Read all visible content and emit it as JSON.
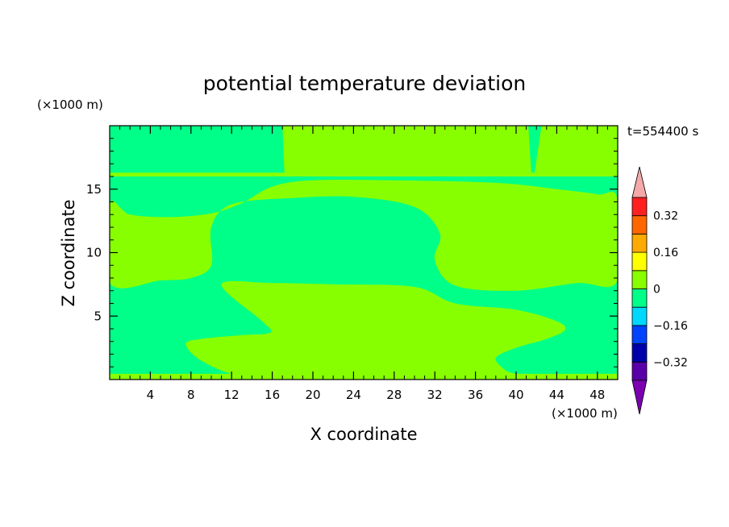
{
  "chart_data": {
    "type": "heatmap",
    "title": "potential temperature deviation",
    "time_label": "t=554400 s",
    "xlabel": "X coordinate",
    "ylabel": "Z coordinate",
    "x_unit": "(×1000 m)",
    "y_unit": "(×1000 m)",
    "xlim": [
      0,
      50
    ],
    "ylim": [
      0,
      20
    ],
    "x_ticks": [
      4,
      8,
      12,
      16,
      20,
      24,
      28,
      32,
      36,
      40,
      44,
      48
    ],
    "y_ticks": [
      5,
      10,
      15
    ],
    "colorbar": {
      "labels": [
        {
          "value": 0.32,
          "text": "0.32"
        },
        {
          "value": 0.16,
          "text": "0.16"
        },
        {
          "value": 0,
          "text": "0"
        },
        {
          "value": -0.16,
          "text": "−0.16"
        },
        {
          "value": -0.32,
          "text": "−0.32"
        }
      ],
      "levels": [
        -0.4,
        -0.32,
        -0.24,
        -0.16,
        -0.08,
        0,
        0.08,
        0.16,
        0.24,
        0.32,
        0.4
      ],
      "colors": [
        "#5a00a8",
        "#0000aa",
        "#0044ff",
        "#00d8ff",
        "#00ff88",
        "#88ff00",
        "#ffff00",
        "#ffaa00",
        "#ff6600",
        "#ff2020"
      ],
      "over_color": "#f4a8a8",
      "under_color": "#7a00b0"
    },
    "fields": {
      "background": {
        "range": [
          -0.08,
          0
        ],
        "color": "#00ff88"
      },
      "regions": [
        {
          "range": [
            0,
            0.08
          ],
          "color": "#88ff00",
          "outline": [
            [
              17.0,
              20
            ],
            [
              17.2,
              16.2
            ],
            [
              41.5,
              16.2
            ],
            [
              41.2,
              20
            ]
          ]
        },
        {
          "range": [
            0,
            0.08
          ],
          "color": "#88ff00",
          "outline": [
            [
              41.8,
              16.2
            ],
            [
              42.5,
              20
            ],
            [
              50,
              20
            ],
            [
              50,
              16.2
            ]
          ]
        },
        {
          "range": [
            0,
            0.08
          ],
          "color": "#88ff00",
          "outline": [
            [
              0,
              16.0
            ],
            [
              50,
              16.0
            ],
            [
              50,
              16.3
            ],
            [
              0,
              16.3
            ]
          ]
        },
        {
          "range": [
            0,
            0.08
          ],
          "color": "#88ff00",
          "outline": [
            [
              0,
              13.8
            ],
            [
              2,
              13.0
            ],
            [
              6,
              12.8
            ],
            [
              10,
              13.1
            ],
            [
              13,
              13.9
            ],
            [
              16,
              15.2
            ],
            [
              20,
              15.7
            ],
            [
              28,
              15.7
            ],
            [
              38,
              15.5
            ],
            [
              44,
              15.0
            ],
            [
              48,
              14.6
            ],
            [
              50,
              14.2
            ],
            [
              50,
              7.8
            ],
            [
              46,
              7.6
            ],
            [
              40,
              7.0
            ],
            [
              34,
              7.4
            ],
            [
              32,
              9.4
            ],
            [
              32.5,
              11.5
            ],
            [
              30,
              13.6
            ],
            [
              24,
              14.4
            ],
            [
              18,
              14.3
            ],
            [
              12,
              13.8
            ],
            [
              10,
              12.0
            ],
            [
              10,
              9.0
            ],
            [
              8,
              8.0
            ],
            [
              5,
              7.8
            ],
            [
              0,
              7.6
            ]
          ]
        },
        {
          "range": [
            0,
            0.08
          ],
          "color": "#88ff00",
          "outline": [
            [
              11,
              7.5
            ],
            [
              16,
              7.6
            ],
            [
              22,
              7.5
            ],
            [
              30,
              7.3
            ],
            [
              34,
              6.0
            ],
            [
              40,
              5.5
            ],
            [
              44,
              4.6
            ],
            [
              44.8,
              3.9
            ],
            [
              43,
              3.2
            ],
            [
              40,
              2.5
            ],
            [
              38,
              1.7
            ],
            [
              39,
              0.7
            ],
            [
              40,
              0.3
            ],
            [
              31,
              0.3
            ],
            [
              20,
              0.3
            ],
            [
              13,
              0.3
            ],
            [
              9,
              1.5
            ],
            [
              7.5,
              2.8
            ],
            [
              9,
              3.2
            ],
            [
              13,
              3.5
            ],
            [
              15.8,
              3.7
            ],
            [
              15,
              4.6
            ]
          ]
        },
        {
          "range": [
            0,
            0.08
          ],
          "color": "#88ff00",
          "outline": [
            [
              0,
              0
            ],
            [
              50,
              0
            ],
            [
              50,
              0.45
            ],
            [
              0,
              0.45
            ]
          ]
        }
      ]
    }
  }
}
